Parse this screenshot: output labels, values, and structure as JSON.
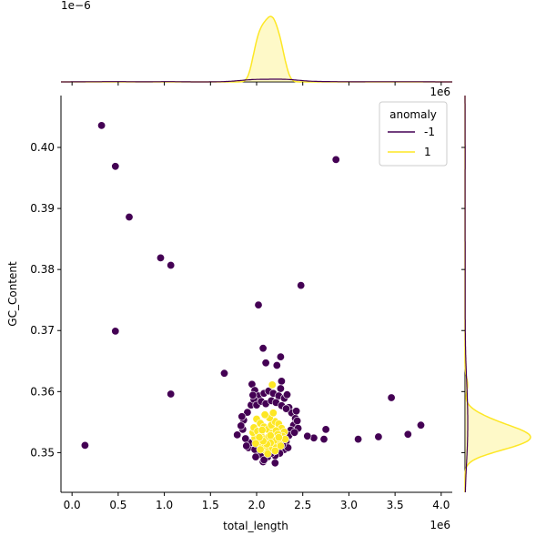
{
  "chart_data": {
    "type": "scatter",
    "title": "",
    "xlabel": "total_length",
    "ylabel": "GC_Content",
    "xlim": [
      -0.12,
      4.12
    ],
    "ylim": [
      0.3435,
      0.4085
    ],
    "x_scale_text": "1e6",
    "y_ticks": [
      0.35,
      0.36,
      0.37,
      0.38,
      0.39,
      0.4
    ],
    "y_tick_labels": [
      "0.35",
      "0.36",
      "0.37",
      "0.38",
      "0.39",
      "0.40"
    ],
    "x_ticks": [
      0.0,
      0.5,
      1.0,
      1.5,
      2.0,
      2.5,
      3.0,
      3.5,
      4.0
    ],
    "x_tick_labels": [
      "0.0",
      "0.5",
      "1.0",
      "1.5",
      "2.0",
      "2.5",
      "3.0",
      "3.5",
      "4.0"
    ],
    "top_marginal_scale_text": "1e−6",
    "right_marginal_scale_text": "1e6",
    "grid": false,
    "legend": {
      "title": "anomaly",
      "placement": "top-right",
      "entries": [
        {
          "label": "-1",
          "color": "#440154"
        },
        {
          "label": "1",
          "color": "#fde725"
        }
      ]
    },
    "series": [
      {
        "name": "-1",
        "color": "#440154",
        "points": [
          [
            0.32,
            0.4036
          ],
          [
            0.47,
            0.3969
          ],
          [
            0.62,
            0.3886
          ],
          [
            0.96,
            0.3819
          ],
          [
            1.07,
            0.3807
          ],
          [
            2.86,
            0.398
          ],
          [
            2.48,
            0.3774
          ],
          [
            2.02,
            0.3742
          ],
          [
            0.47,
            0.3699
          ],
          [
            1.07,
            0.3596
          ],
          [
            0.14,
            0.3512
          ],
          [
            1.65,
            0.363
          ],
          [
            2.07,
            0.3671
          ],
          [
            2.1,
            0.3647
          ],
          [
            2.22,
            0.3643
          ],
          [
            2.26,
            0.3657
          ],
          [
            2.27,
            0.3617
          ],
          [
            3.46,
            0.359
          ],
          [
            3.78,
            0.3545
          ],
          [
            3.64,
            0.353
          ],
          [
            3.32,
            0.3526
          ],
          [
            3.1,
            0.3522
          ],
          [
            2.75,
            0.3538
          ],
          [
            2.73,
            0.3522
          ],
          [
            2.62,
            0.3524
          ],
          [
            2.55,
            0.3527
          ],
          [
            1.91,
            0.3508
          ],
          [
            2.07,
            0.3485
          ],
          [
            2.2,
            0.3483
          ],
          [
            1.79,
            0.3529
          ],
          [
            1.95,
            0.3612
          ],
          [
            1.98,
            0.3602
          ],
          [
            2.02,
            0.3593
          ],
          [
            2.08,
            0.3597
          ],
          [
            2.13,
            0.3601
          ],
          [
            2.18,
            0.3597
          ],
          [
            2.24,
            0.3593
          ],
          [
            2.3,
            0.3589
          ],
          [
            2.35,
            0.3574
          ],
          [
            2.38,
            0.3565
          ],
          [
            2.42,
            0.3556
          ],
          [
            2.4,
            0.3545
          ],
          [
            2.37,
            0.3537
          ],
          [
            2.35,
            0.3528
          ],
          [
            2.32,
            0.3518
          ],
          [
            2.3,
            0.3505
          ],
          [
            2.25,
            0.3499
          ],
          [
            2.2,
            0.3495
          ],
          [
            2.12,
            0.3493
          ],
          [
            2.04,
            0.3497
          ],
          [
            1.98,
            0.3505
          ],
          [
            1.93,
            0.3516
          ],
          [
            1.88,
            0.3523
          ],
          [
            1.85,
            0.3538
          ],
          [
            1.86,
            0.3553
          ],
          [
            1.9,
            0.3566
          ],
          [
            1.94,
            0.3578
          ],
          [
            1.97,
            0.3587
          ],
          [
            2.0,
            0.3578
          ],
          [
            2.05,
            0.3584
          ],
          [
            2.1,
            0.358
          ],
          [
            2.16,
            0.3585
          ],
          [
            2.21,
            0.3582
          ],
          [
            2.27,
            0.3577
          ],
          [
            2.32,
            0.3572
          ],
          [
            2.43,
            0.3568
          ],
          [
            2.44,
            0.3552
          ],
          [
            2.45,
            0.354
          ],
          [
            2.41,
            0.3533
          ],
          [
            2.34,
            0.3508
          ],
          [
            2.28,
            0.3513
          ],
          [
            2.16,
            0.3499
          ],
          [
            2.08,
            0.3488
          ],
          [
            1.99,
            0.3493
          ],
          [
            1.89,
            0.3511
          ],
          [
            1.83,
            0.3544
          ],
          [
            1.84,
            0.3559
          ],
          [
            1.96,
            0.3594
          ],
          [
            2.26,
            0.3605
          ],
          [
            2.33,
            0.3595
          ]
        ]
      },
      {
        "name": "1",
        "color": "#fde725",
        "points": [
          [
            2.17,
            0.3611
          ],
          [
            2.0,
            0.3555
          ],
          [
            2.04,
            0.3548
          ],
          [
            2.08,
            0.3542
          ],
          [
            2.12,
            0.3538
          ],
          [
            2.16,
            0.3545
          ],
          [
            2.2,
            0.3551
          ],
          [
            2.24,
            0.3547
          ],
          [
            2.27,
            0.354
          ],
          [
            2.3,
            0.3534
          ],
          [
            2.28,
            0.3527
          ],
          [
            2.25,
            0.3521
          ],
          [
            2.22,
            0.3515
          ],
          [
            2.18,
            0.3511
          ],
          [
            2.14,
            0.3506
          ],
          [
            2.1,
            0.3503
          ],
          [
            2.06,
            0.3509
          ],
          [
            2.02,
            0.3516
          ],
          [
            1.98,
            0.3524
          ],
          [
            1.96,
            0.3533
          ],
          [
            1.97,
            0.3541
          ],
          [
            2.01,
            0.3535
          ],
          [
            2.05,
            0.3528
          ],
          [
            2.09,
            0.3523
          ],
          [
            2.13,
            0.3526
          ],
          [
            2.17,
            0.3532
          ],
          [
            2.21,
            0.3536
          ],
          [
            2.23,
            0.353
          ],
          [
            2.19,
            0.352
          ],
          [
            2.15,
            0.3516
          ],
          [
            2.11,
            0.3514
          ],
          [
            2.07,
            0.3519
          ],
          [
            2.03,
            0.3525
          ],
          [
            1.99,
            0.3515
          ],
          [
            2.04,
            0.3505
          ],
          [
            2.12,
            0.3498
          ],
          [
            2.2,
            0.3503
          ],
          [
            2.26,
            0.3511
          ],
          [
            2.31,
            0.3522
          ],
          [
            2.14,
            0.3557
          ],
          [
            2.09,
            0.3562
          ],
          [
            2.18,
            0.3565
          ],
          [
            2.06,
            0.3537
          ],
          [
            2.15,
            0.3528
          ],
          [
            2.24,
            0.3525
          ]
        ]
      }
    ],
    "marginal_top": {
      "type": "kde",
      "series": [
        {
          "name": "1",
          "color": "#fde725",
          "peak_x": 2.08
        }
      ]
    },
    "marginal_right": {
      "type": "kde",
      "series": [
        {
          "name": "1",
          "color": "#fde725",
          "peak_y": 0.3533
        }
      ]
    }
  }
}
